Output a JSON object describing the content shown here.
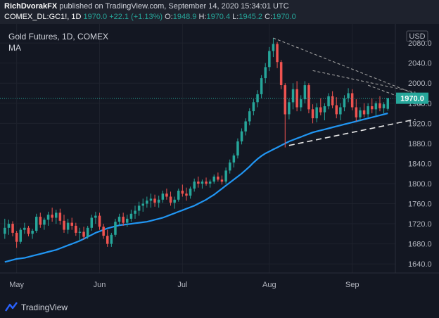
{
  "header": {
    "author": "RichDvorakFX",
    "published_text": "published on TradingView.com, September 14, 2020 15:34:01 UTC",
    "symbol": "COMEX_DL:GC1!, 1D",
    "last": "1970.0",
    "change": "+22.1 (+1.13%)",
    "o_label": "O:",
    "o_value": "1948.9",
    "h_label": "H:",
    "h_value": "1970.4",
    "l_label": "L:",
    "l_value": "1945.2",
    "c_label": "C:",
    "c_value": "1970.0"
  },
  "footer": {
    "brand": "TradingView"
  },
  "chart_data": {
    "type": "candlestick",
    "title": "Gold Futures, 1D, COMEX",
    "indicator_label": "MA",
    "currency_label": "USD",
    "y_ticks": [
      1640,
      1680,
      1720,
      1760,
      1800,
      1840,
      1880,
      1920,
      1960,
      2000,
      2040,
      2080
    ],
    "ylim": [
      1622,
      2118
    ],
    "x_labels": [
      "May",
      "Jun",
      "Jul",
      "Aug",
      "Sep"
    ],
    "x_label_index": [
      3,
      24,
      45,
      67,
      88
    ],
    "last_price": 1970.0,
    "candles": [
      [
        1700,
        1730,
        1690,
        1712
      ],
      [
        1712,
        1728,
        1698,
        1720
      ],
      [
        1720,
        1725,
        1695,
        1702
      ],
      [
        1702,
        1706,
        1672,
        1684
      ],
      [
        1684,
        1712,
        1680,
        1708
      ],
      [
        1708,
        1722,
        1700,
        1712
      ],
      [
        1712,
        1716,
        1695,
        1700
      ],
      [
        1700,
        1710,
        1690,
        1706
      ],
      [
        1706,
        1740,
        1702,
        1734
      ],
      [
        1734,
        1742,
        1712,
        1718
      ],
      [
        1718,
        1732,
        1708,
        1728
      ],
      [
        1728,
        1744,
        1716,
        1738
      ],
      [
        1738,
        1752,
        1724,
        1732
      ],
      [
        1732,
        1748,
        1720,
        1742
      ],
      [
        1742,
        1750,
        1718,
        1726
      ],
      [
        1726,
        1738,
        1702,
        1708
      ],
      [
        1708,
        1730,
        1700,
        1722
      ],
      [
        1722,
        1732,
        1708,
        1716
      ],
      [
        1716,
        1722,
        1696,
        1702
      ],
      [
        1702,
        1712,
        1686,
        1704
      ],
      [
        1704,
        1714,
        1688,
        1694
      ],
      [
        1694,
        1716,
        1690,
        1712
      ],
      [
        1712,
        1738,
        1706,
        1732
      ],
      [
        1732,
        1744,
        1720,
        1736
      ],
      [
        1736,
        1742,
        1708,
        1714
      ],
      [
        1714,
        1720,
        1690,
        1696
      ],
      [
        1696,
        1708,
        1674,
        1680
      ],
      [
        1680,
        1702,
        1674,
        1698
      ],
      [
        1698,
        1730,
        1694,
        1724
      ],
      [
        1724,
        1740,
        1716,
        1734
      ],
      [
        1734,
        1742,
        1716,
        1722
      ],
      [
        1722,
        1738,
        1714,
        1730
      ],
      [
        1730,
        1748,
        1724,
        1740
      ],
      [
        1740,
        1756,
        1730,
        1746
      ],
      [
        1746,
        1764,
        1736,
        1756
      ],
      [
        1756,
        1770,
        1744,
        1760
      ],
      [
        1760,
        1774,
        1752,
        1766
      ],
      [
        1766,
        1780,
        1752,
        1770
      ],
      [
        1770,
        1778,
        1754,
        1762
      ],
      [
        1762,
        1776,
        1752,
        1768
      ],
      [
        1768,
        1786,
        1762,
        1780
      ],
      [
        1780,
        1790,
        1768,
        1774
      ],
      [
        1774,
        1784,
        1756,
        1762
      ],
      [
        1762,
        1774,
        1750,
        1768
      ],
      [
        1768,
        1790,
        1764,
        1786
      ],
      [
        1786,
        1798,
        1774,
        1780
      ],
      [
        1780,
        1792,
        1766,
        1776
      ],
      [
        1776,
        1794,
        1770,
        1790
      ],
      [
        1790,
        1810,
        1784,
        1804
      ],
      [
        1804,
        1814,
        1792,
        1800
      ],
      [
        1800,
        1808,
        1790,
        1804
      ],
      [
        1804,
        1812,
        1796,
        1800
      ],
      [
        1800,
        1808,
        1792,
        1804
      ],
      [
        1804,
        1818,
        1800,
        1814
      ],
      [
        1814,
        1822,
        1804,
        1808
      ],
      [
        1808,
        1816,
        1798,
        1804
      ],
      [
        1804,
        1832,
        1800,
        1826
      ],
      [
        1826,
        1848,
        1820,
        1842
      ],
      [
        1842,
        1860,
        1832,
        1856
      ],
      [
        1856,
        1890,
        1850,
        1884
      ],
      [
        1884,
        1910,
        1878,
        1904
      ],
      [
        1904,
        1930,
        1896,
        1924
      ],
      [
        1924,
        1950,
        1916,
        1944
      ],
      [
        1944,
        1968,
        1936,
        1962
      ],
      [
        1962,
        1986,
        1952,
        1978
      ],
      [
        1978,
        2016,
        1970,
        2010
      ],
      [
        2010,
        2040,
        2000,
        2032
      ],
      [
        2032,
        2072,
        2024,
        2064
      ],
      [
        2064,
        2090,
        2052,
        2078
      ],
      [
        2078,
        2082,
        2030,
        2042
      ],
      [
        2042,
        2046,
        1988,
        1996
      ],
      [
        1996,
        2000,
        1872,
        1938
      ],
      [
        1938,
        1968,
        1928,
        1962
      ],
      [
        1962,
        2000,
        1948,
        1988
      ],
      [
        1988,
        2004,
        1944,
        1952
      ],
      [
        1952,
        1976,
        1944,
        1968
      ],
      [
        1968,
        2004,
        1960,
        1996
      ],
      [
        1996,
        2000,
        1940,
        1948
      ],
      [
        1948,
        1958,
        1920,
        1930
      ],
      [
        1930,
        1960,
        1922,
        1952
      ],
      [
        1952,
        1970,
        1936,
        1942
      ],
      [
        1942,
        1960,
        1926,
        1954
      ],
      [
        1954,
        1980,
        1948,
        1974
      ],
      [
        1974,
        1984,
        1950,
        1956
      ],
      [
        1956,
        1972,
        1930,
        1938
      ],
      [
        1938,
        1960,
        1926,
        1952
      ],
      [
        1952,
        1976,
        1944,
        1970
      ],
      [
        1970,
        1990,
        1962,
        1980
      ],
      [
        1980,
        1988,
        1946,
        1952
      ],
      [
        1952,
        1968,
        1924,
        1932
      ],
      [
        1932,
        1952,
        1924,
        1946
      ],
      [
        1946,
        1960,
        1932,
        1938
      ],
      [
        1938,
        1960,
        1932,
        1954
      ],
      [
        1954,
        1970,
        1940,
        1948
      ],
      [
        1948,
        1964,
        1936,
        1960
      ],
      [
        1960,
        1974,
        1944,
        1950
      ],
      [
        1950,
        1962,
        1940,
        1958
      ],
      [
        1948.9,
        1970.4,
        1945.2,
        1970.0
      ]
    ],
    "ma": [
      1644,
      1646,
      1648,
      1650,
      1651,
      1652,
      1654,
      1656,
      1658,
      1660,
      1662,
      1664,
      1666,
      1668,
      1671,
      1674,
      1677,
      1680,
      1683,
      1686,
      1690,
      1694,
      1698,
      1702,
      1705,
      1708,
      1711,
      1713,
      1715,
      1717,
      1718,
      1719,
      1720,
      1721,
      1722,
      1723,
      1724,
      1726,
      1728,
      1730,
      1732,
      1735,
      1738,
      1741,
      1744,
      1747,
      1750,
      1753,
      1756,
      1760,
      1764,
      1768,
      1773,
      1778,
      1784,
      1790,
      1796,
      1802,
      1808,
      1814,
      1820,
      1827,
      1834,
      1842,
      1849,
      1855,
      1860,
      1864,
      1868,
      1872,
      1876,
      1880,
      1884,
      1887,
      1890,
      1893,
      1896,
      1899,
      1902,
      1904,
      1906,
      1908,
      1910,
      1912,
      1914,
      1916,
      1918,
      1920,
      1922,
      1924,
      1926,
      1928,
      1930,
      1932,
      1934,
      1936,
      1938,
      1940
    ],
    "trendlines": [
      {
        "style": "dashed-light",
        "from": [
          68,
          2090
        ],
        "to": [
          106,
          1972
        ]
      },
      {
        "style": "dashed-light",
        "from": [
          78,
          2025
        ],
        "to": [
          104,
          1982
        ]
      },
      {
        "style": "dashed-light",
        "from": [
          92,
          1996
        ],
        "to": [
          106,
          1955
        ]
      },
      {
        "style": "dashed-white",
        "from": [
          72,
          1876
        ],
        "to": [
          104,
          1928
        ]
      }
    ]
  }
}
